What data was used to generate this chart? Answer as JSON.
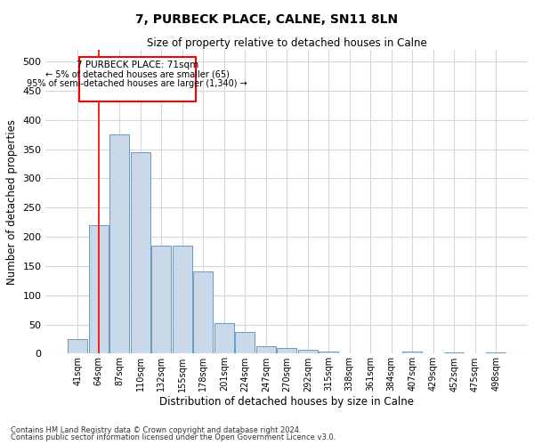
{
  "title": "7, PURBECK PLACE, CALNE, SN11 8LN",
  "subtitle": "Size of property relative to detached houses in Calne",
  "xlabel": "Distribution of detached houses by size in Calne",
  "ylabel": "Number of detached properties",
  "footnote1": "Contains HM Land Registry data © Crown copyright and database right 2024.",
  "footnote2": "Contains public sector information licensed under the Open Government Licence v3.0.",
  "bar_color": "#c9d9ea",
  "bar_edge_color": "#6a9abf",
  "bin_labels": [
    "41sqm",
    "64sqm",
    "87sqm",
    "110sqm",
    "132sqm",
    "155sqm",
    "178sqm",
    "201sqm",
    "224sqm",
    "247sqm",
    "270sqm",
    "292sqm",
    "315sqm",
    "338sqm",
    "361sqm",
    "384sqm",
    "407sqm",
    "429sqm",
    "452sqm",
    "475sqm",
    "498sqm"
  ],
  "bar_values": [
    25,
    220,
    375,
    345,
    185,
    185,
    140,
    52,
    37,
    12,
    10,
    7,
    4,
    0,
    0,
    0,
    3,
    0,
    2,
    0,
    2
  ],
  "ylim": [
    0,
    520
  ],
  "yticks": [
    0,
    50,
    100,
    150,
    200,
    250,
    300,
    350,
    400,
    450,
    500
  ],
  "red_line_x": 1.0,
  "annotation_title": "7 PURBECK PLACE: 71sqm",
  "annotation_line1": "← 5% of detached houses are smaller (65)",
  "annotation_line2": "95% of semi-detached houses are larger (1,340) →",
  "grid_color": "#d0d8e8",
  "background_color": "#ffffff"
}
